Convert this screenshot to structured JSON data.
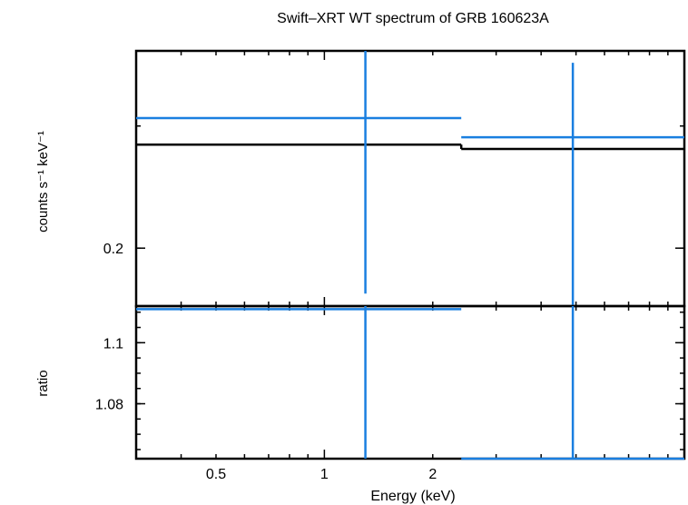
{
  "chart_data": [
    {
      "type": "line",
      "panel": "spectrum",
      "title": "Swift–XRT WT spectrum of GRB 160623A",
      "ylabel": "counts s⁻¹ keV⁻¹",
      "xscale": "log",
      "yscale": "log",
      "xlim": [
        0.3,
        10.0
      ],
      "ylim": [
        0.165,
        0.385
      ],
      "yticks": [
        0.2
      ],
      "series": [
        {
          "role": "data",
          "color": "#1a7fe0",
          "points": [
            {
              "x": 1.3,
              "xerr": [
                0.3,
                2.4
              ],
              "y": 0.308,
              "yerr": [
                0.172,
                0.385
              ]
            },
            {
              "x": 4.9,
              "xerr": [
                2.4,
                10.0
              ],
              "y": 0.289,
              "yerr": [
                0.165,
                0.37
              ]
            }
          ]
        },
        {
          "role": "model",
          "color": "#000000",
          "steps": [
            {
              "x0": 0.3,
              "x1": 2.4,
              "y": 0.282
            },
            {
              "x0": 2.4,
              "x1": 10.0,
              "y": 0.278
            }
          ]
        }
      ]
    },
    {
      "type": "line",
      "panel": "ratio",
      "xlabel": "Energy (keV)",
      "ylabel": "ratio",
      "xscale": "log",
      "xlim": [
        0.3,
        10.0
      ],
      "ylim": [
        1.062,
        1.112
      ],
      "xticks": [
        {
          "v": 0.5,
          "label": "0.5"
        },
        {
          "v": 1,
          "label": "1"
        },
        {
          "v": 2,
          "label": "2"
        }
      ],
      "yticks": [
        {
          "v": 1.08,
          "label": "1.08"
        },
        {
          "v": 1.1,
          "label": "1.1"
        }
      ],
      "series": [
        {
          "role": "data",
          "color": "#1a7fe0",
          "points": [
            {
              "x": 1.3,
              "xerr": [
                0.3,
                2.4
              ],
              "y": 1.111,
              "yerr": [
                1.062,
                1.112
              ]
            },
            {
              "x": 4.9,
              "xerr": [
                2.4,
                10.0
              ],
              "y": 1.062,
              "yerr": [
                1.062,
                1.112
              ]
            }
          ]
        }
      ]
    }
  ]
}
